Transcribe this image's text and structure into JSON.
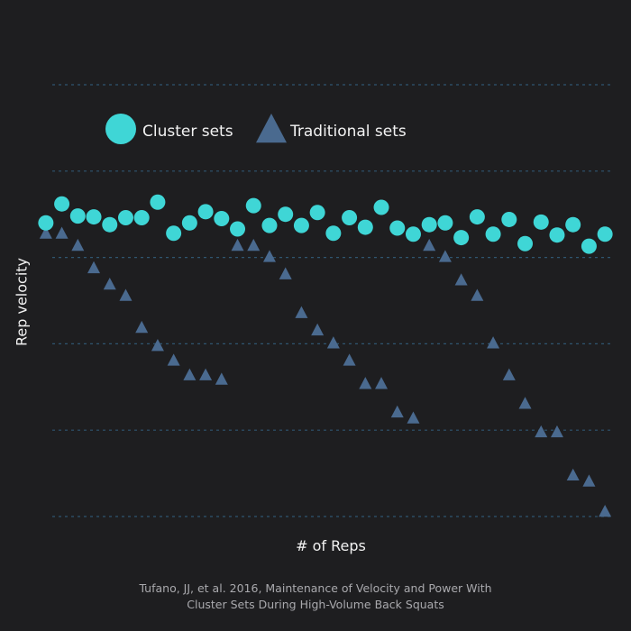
{
  "colors": {
    "background": "#1e1e20",
    "cluster": "#3fd6d6",
    "traditional": "#4a6a8f",
    "grid": "#2f5570"
  },
  "chart_data": {
    "type": "scatter",
    "xlabel": "# of Reps",
    "ylabel": "Rep velocity",
    "xlim": [
      0.5,
      36.5
    ],
    "ylim": [
      0,
      5
    ],
    "grid": "horizontal dashed",
    "legend_placement": "top-left",
    "x": [
      1,
      2,
      3,
      4,
      5,
      6,
      7,
      8,
      9,
      10,
      11,
      12,
      13,
      14,
      15,
      16,
      17,
      18,
      19,
      20,
      21,
      22,
      23,
      24,
      25,
      26,
      27,
      28,
      29,
      30,
      31,
      32,
      33,
      34,
      35,
      36
    ],
    "series": [
      {
        "name": "Cluster sets",
        "marker": "circle",
        "values": [
          3.4,
          3.62,
          3.48,
          3.47,
          3.38,
          3.46,
          3.46,
          3.64,
          3.28,
          3.4,
          3.53,
          3.45,
          3.33,
          3.6,
          3.37,
          3.5,
          3.37,
          3.52,
          3.28,
          3.46,
          3.35,
          3.58,
          3.34,
          3.27,
          3.38,
          3.4,
          3.23,
          3.47,
          3.27,
          3.44,
          3.16,
          3.41,
          3.26,
          3.38,
          3.13,
          3.27
        ]
      },
      {
        "name": "Traditional sets",
        "marker": "triangle",
        "values": [
          3.27,
          3.27,
          3.13,
          2.87,
          2.68,
          2.55,
          2.18,
          1.97,
          1.8,
          1.63,
          1.63,
          1.58,
          3.13,
          3.13,
          3.0,
          2.8,
          2.35,
          2.15,
          2.0,
          1.8,
          1.53,
          1.53,
          1.2,
          1.13,
          3.13,
          3.0,
          2.73,
          2.55,
          2.0,
          1.63,
          1.3,
          0.97,
          0.97,
          0.47,
          0.4,
          0.05
        ]
      }
    ]
  },
  "caption": {
    "line1": "Tufano, JJ, et al. 2016, Maintenance of Velocity and Power With",
    "line2": "Cluster Sets During High-Volume Back Squats"
  }
}
